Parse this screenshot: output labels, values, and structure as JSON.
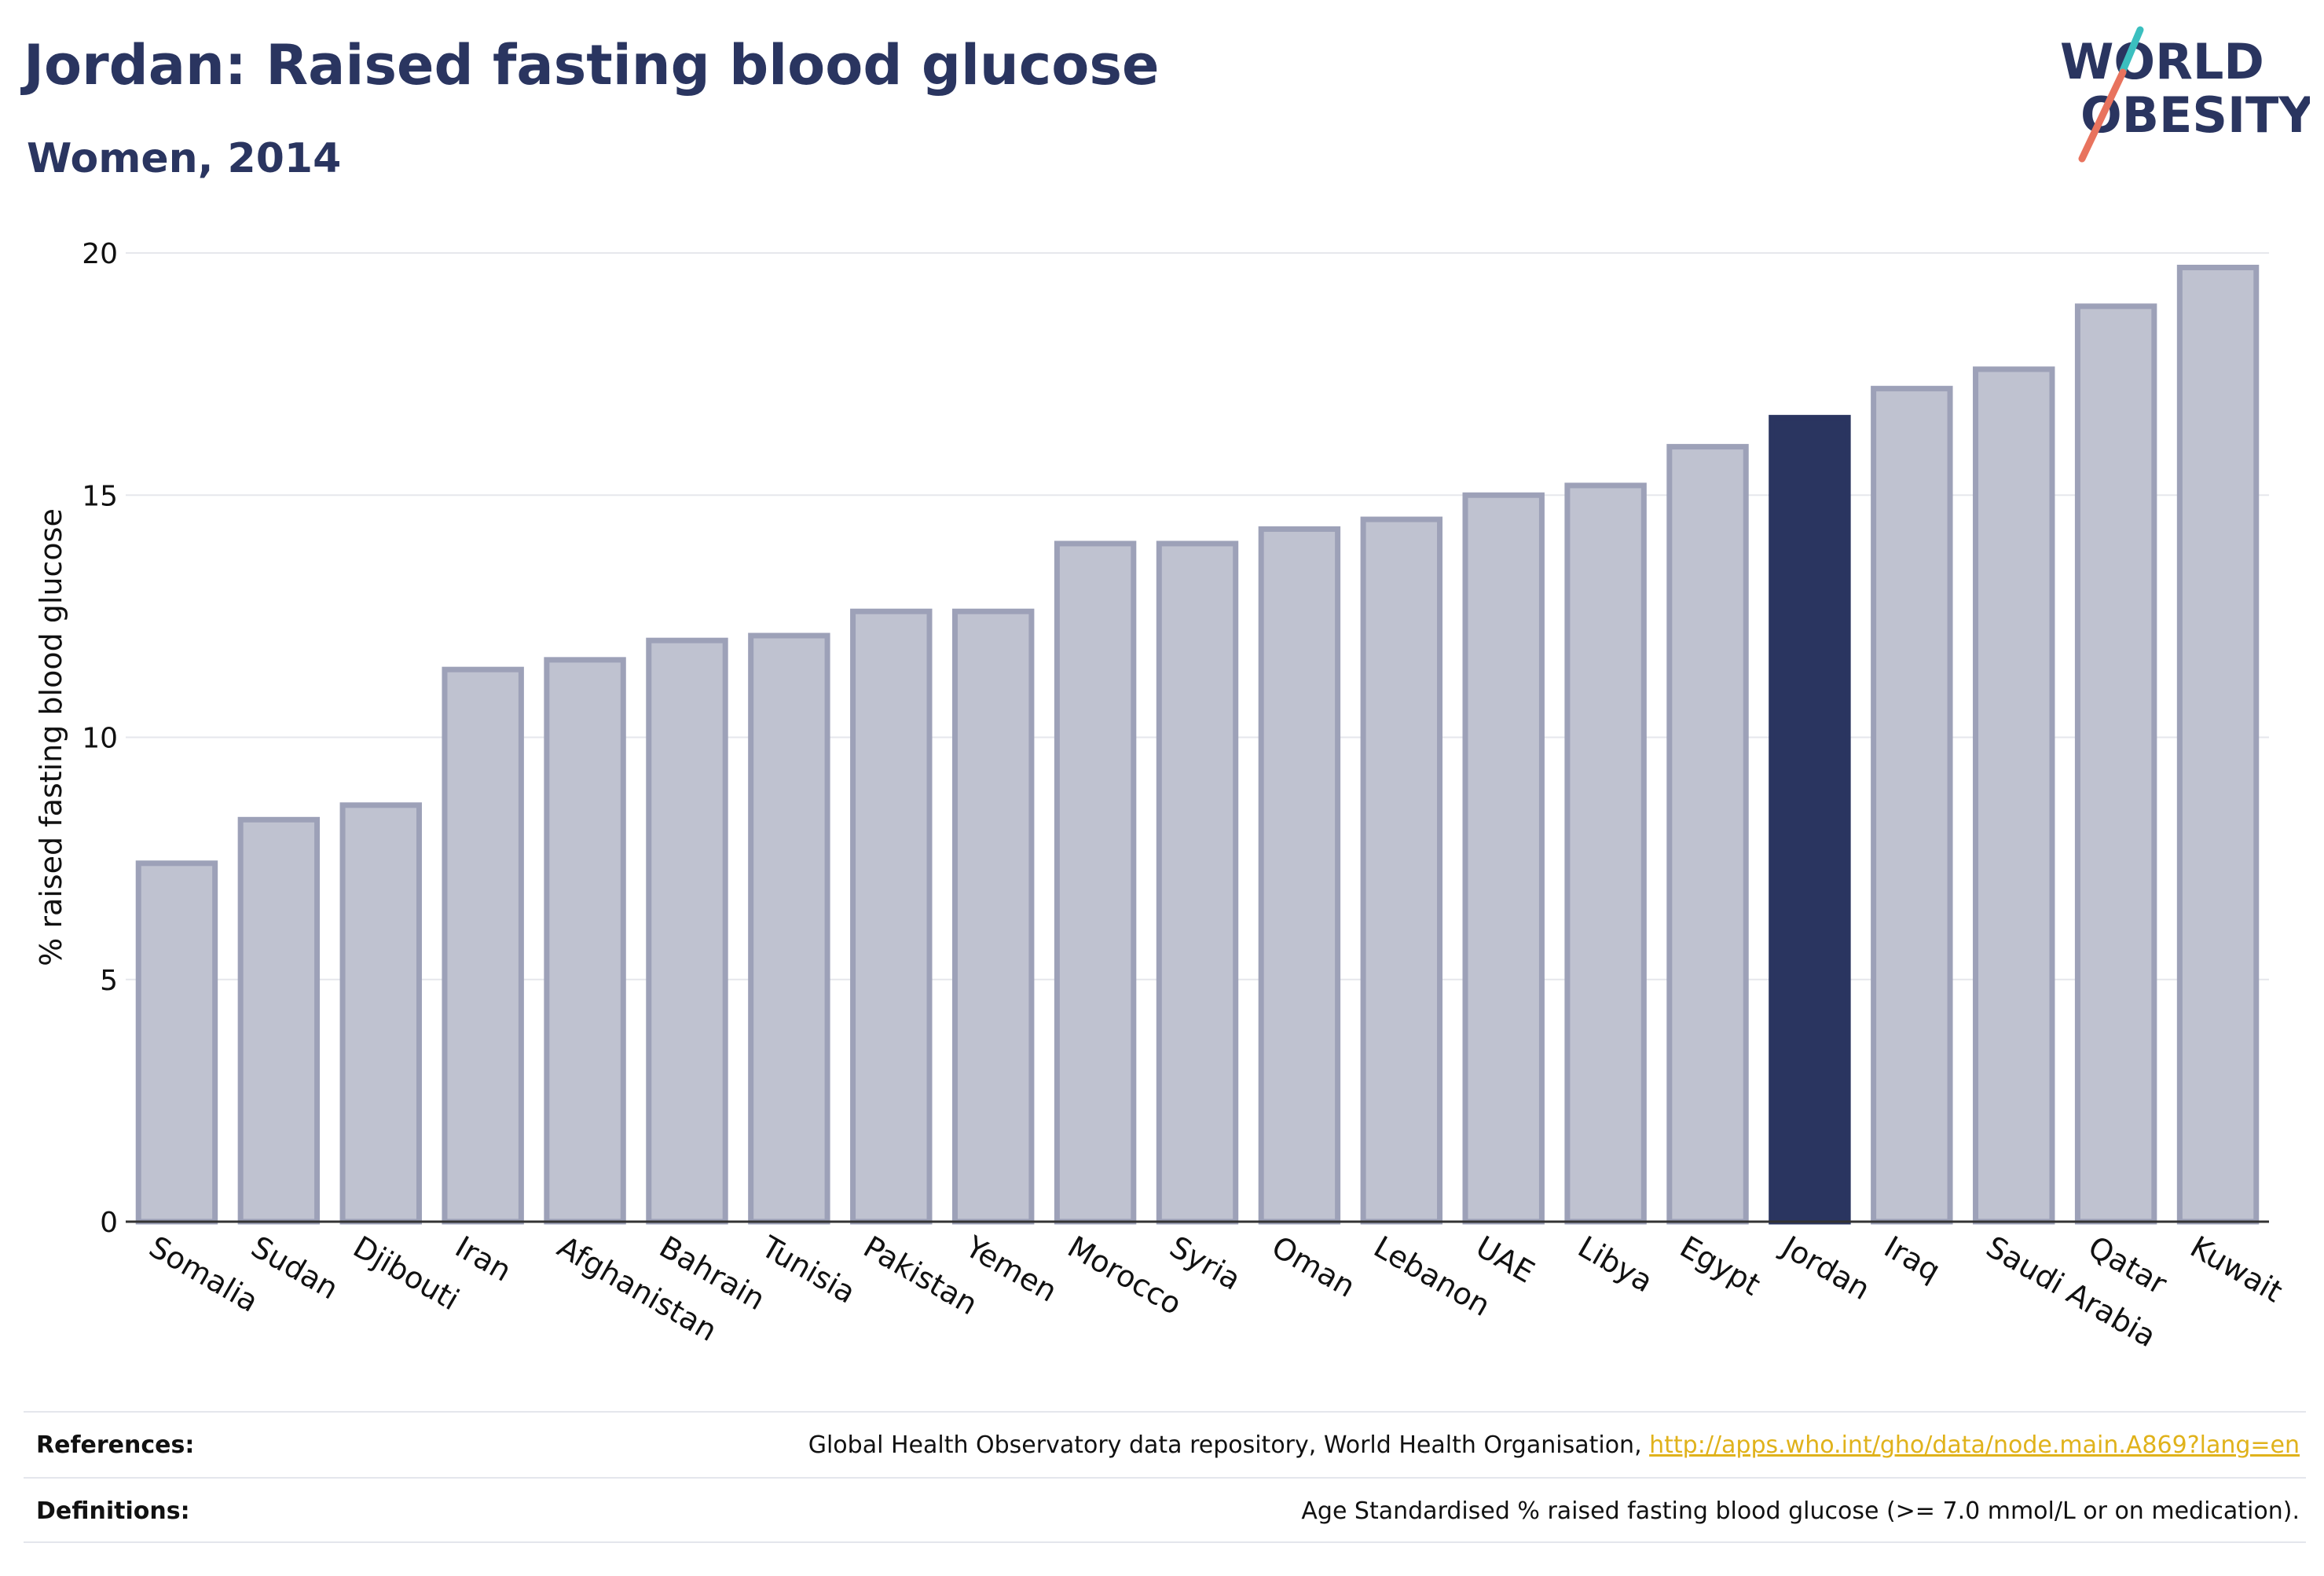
{
  "header": {
    "title": "Jordan: Raised fasting blood glucose",
    "subtitle": "Women, 2014"
  },
  "logo": {
    "line1": "WORLD",
    "line2": "OBESITY",
    "text_color": "#2a3560",
    "stroke_teal": "#3bbfbf",
    "stroke_coral": "#e8735e"
  },
  "chart_data": {
    "type": "bar",
    "title": "Jordan: Raised fasting blood glucose",
    "subtitle": "Women, 2014",
    "xlabel": "",
    "ylabel": "% raised fasting blood glucose",
    "ylim": [
      0,
      20
    ],
    "yticks": [
      0,
      5,
      10,
      15,
      20
    ],
    "grid": true,
    "categories": [
      "Somalia",
      "Sudan",
      "Djibouti",
      "Iran",
      "Afghanistan",
      "Bahrain",
      "Tunisia",
      "Pakistan",
      "Yemen",
      "Morocco",
      "Syria",
      "Oman",
      "Lebanon",
      "UAE",
      "Libya",
      "Egypt",
      "Jordan",
      "Iraq",
      "Saudi Arabia",
      "Qatar",
      "Kuwait"
    ],
    "values": [
      7.4,
      8.3,
      8.6,
      11.4,
      11.6,
      12.0,
      12.1,
      12.6,
      12.6,
      14.0,
      14.0,
      14.3,
      14.5,
      15.0,
      15.2,
      16.0,
      16.6,
      17.2,
      17.6,
      18.9,
      19.7
    ],
    "highlight": "Jordan",
    "colors": {
      "bar_fill": "#bfc2d0",
      "bar_stroke": "#9da1b8",
      "highlight_fill": "#2a3560"
    }
  },
  "footer": {
    "references_label": "References:",
    "references_text": "Global Health Observatory data repository, World Health Organisation, ",
    "references_link": "http://apps.who.int/gho/data/node.main.A869?lang=en",
    "definitions_label": "Definitions:",
    "definitions_text": "Age Standardised % raised fasting blood glucose (>= 7.0 mmol/L or on medication)."
  }
}
